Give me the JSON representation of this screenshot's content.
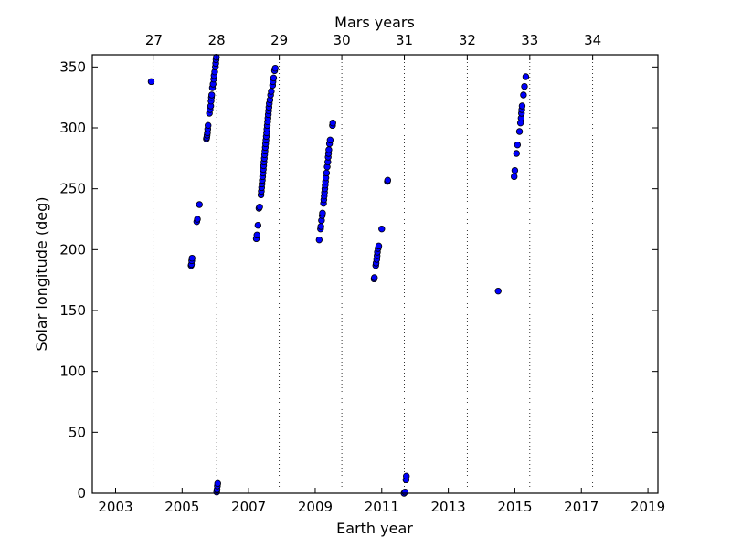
{
  "chart_data": {
    "type": "scatter",
    "top_axis_title": "Mars years",
    "xlabel": "Earth year",
    "ylabel": "Solar longitude (deg)",
    "xlim": [
      2002.3,
      2019.3
    ],
    "ylim": [
      0,
      360
    ],
    "x_ticks": [
      2003,
      2005,
      2007,
      2009,
      2011,
      2013,
      2015,
      2017,
      2019
    ],
    "y_ticks": [
      0,
      50,
      100,
      150,
      200,
      250,
      300,
      350
    ],
    "mars_year_ticks": [
      {
        "label": "27",
        "earth_year": 2004.15
      },
      {
        "label": "28",
        "earth_year": 2006.04
      },
      {
        "label": "29",
        "earth_year": 2007.92
      },
      {
        "label": "30",
        "earth_year": 2009.8
      },
      {
        "label": "31",
        "earth_year": 2011.68
      },
      {
        "label": "32",
        "earth_year": 2013.57
      },
      {
        "label": "33",
        "earth_year": 2015.45
      },
      {
        "label": "34",
        "earth_year": 2017.34
      }
    ],
    "grid": "vertical dotted lines at Mars year boundaries",
    "marker_color": "#0000ff",
    "marker_edge_color": "#000000",
    "series": [
      {
        "name": "",
        "points": [
          [
            2004.07,
            338
          ],
          [
            2005.27,
            187
          ],
          [
            2005.28,
            188
          ],
          [
            2005.29,
            191
          ],
          [
            2005.3,
            193
          ],
          [
            2005.44,
            223
          ],
          [
            2005.46,
            225
          ],
          [
            2005.52,
            237
          ],
          [
            2005.73,
            291
          ],
          [
            2005.74,
            292
          ],
          [
            2005.75,
            294
          ],
          [
            2005.76,
            296
          ],
          [
            2005.77,
            299
          ],
          [
            2005.78,
            302
          ],
          [
            2005.82,
            312
          ],
          [
            2005.84,
            315
          ],
          [
            2005.86,
            318
          ],
          [
            2005.87,
            322
          ],
          [
            2005.88,
            325
          ],
          [
            2005.89,
            327
          ],
          [
            2005.91,
            333
          ],
          [
            2005.93,
            336
          ],
          [
            2005.95,
            340
          ],
          [
            2005.96,
            343
          ],
          [
            2005.98,
            346
          ],
          [
            2006.0,
            350
          ],
          [
            2006.01,
            353
          ],
          [
            2006.02,
            356
          ],
          [
            2006.03,
            358
          ],
          [
            2006.04,
            1
          ],
          [
            2006.05,
            3
          ],
          [
            2006.06,
            6
          ],
          [
            2006.07,
            8
          ],
          [
            2007.23,
            209
          ],
          [
            2007.25,
            212
          ],
          [
            2007.28,
            220
          ],
          [
            2007.31,
            234
          ],
          [
            2007.33,
            235
          ],
          [
            2007.37,
            245
          ],
          [
            2007.38,
            248
          ],
          [
            2007.39,
            251
          ],
          [
            2007.4,
            254
          ],
          [
            2007.41,
            257
          ],
          [
            2007.42,
            260
          ],
          [
            2007.43,
            263
          ],
          [
            2007.44,
            266
          ],
          [
            2007.45,
            269
          ],
          [
            2007.46,
            272
          ],
          [
            2007.47,
            275
          ],
          [
            2007.48,
            278
          ],
          [
            2007.49,
            281
          ],
          [
            2007.5,
            284
          ],
          [
            2007.51,
            287
          ],
          [
            2007.52,
            290
          ],
          [
            2007.53,
            293
          ],
          [
            2007.54,
            296
          ],
          [
            2007.55,
            299
          ],
          [
            2007.56,
            302
          ],
          [
            2007.57,
            305
          ],
          [
            2007.58,
            308
          ],
          [
            2007.59,
            311
          ],
          [
            2007.6,
            314
          ],
          [
            2007.61,
            317
          ],
          [
            2007.62,
            320
          ],
          [
            2007.64,
            323
          ],
          [
            2007.66,
            327
          ],
          [
            2007.68,
            330
          ],
          [
            2007.72,
            335
          ],
          [
            2007.73,
            338
          ],
          [
            2007.75,
            341
          ],
          [
            2007.78,
            347
          ],
          [
            2007.8,
            349
          ],
          [
            2009.12,
            208
          ],
          [
            2009.16,
            217
          ],
          [
            2009.17,
            219
          ],
          [
            2009.19,
            224
          ],
          [
            2009.21,
            228
          ],
          [
            2009.22,
            230
          ],
          [
            2009.25,
            238
          ],
          [
            2009.26,
            241
          ],
          [
            2009.27,
            244
          ],
          [
            2009.28,
            247
          ],
          [
            2009.29,
            250
          ],
          [
            2009.3,
            253
          ],
          [
            2009.31,
            256
          ],
          [
            2009.32,
            259
          ],
          [
            2009.34,
            263
          ],
          [
            2009.36,
            268
          ],
          [
            2009.38,
            272
          ],
          [
            2009.39,
            276
          ],
          [
            2009.4,
            279
          ],
          [
            2009.41,
            282
          ],
          [
            2009.43,
            287
          ],
          [
            2009.45,
            290
          ],
          [
            2009.52,
            302
          ],
          [
            2009.53,
            304
          ],
          [
            2010.77,
            176
          ],
          [
            2010.78,
            177
          ],
          [
            2010.82,
            187
          ],
          [
            2010.83,
            189
          ],
          [
            2010.85,
            192
          ],
          [
            2010.86,
            195
          ],
          [
            2010.87,
            198
          ],
          [
            2010.89,
            201
          ],
          [
            2010.91,
            203
          ],
          [
            2011.0,
            217
          ],
          [
            2011.17,
            256
          ],
          [
            2011.18,
            257
          ],
          [
            2011.67,
            0
          ],
          [
            2011.7,
            1
          ],
          [
            2011.73,
            11
          ],
          [
            2011.74,
            14
          ],
          [
            2014.5,
            166
          ],
          [
            2014.98,
            260
          ],
          [
            2015.0,
            265
          ],
          [
            2015.05,
            279
          ],
          [
            2015.08,
            286
          ],
          [
            2015.14,
            297
          ],
          [
            2015.17,
            304
          ],
          [
            2015.19,
            308
          ],
          [
            2015.2,
            312
          ],
          [
            2015.21,
            315
          ],
          [
            2015.22,
            318
          ],
          [
            2015.26,
            327
          ],
          [
            2015.29,
            334
          ],
          [
            2015.33,
            342
          ]
        ]
      }
    ]
  }
}
